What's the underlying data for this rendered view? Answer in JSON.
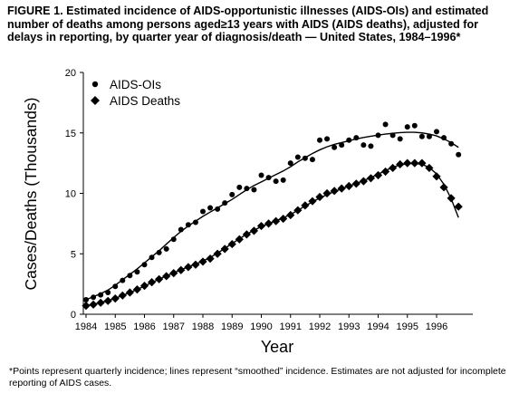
{
  "figure": {
    "caption": "FIGURE 1. Estimated incidence of AIDS-opportunistic illnesses (AIDS-OIs) and estimated number of deaths among persons aged≥13 years with AIDS (AIDS deaths), adjusted for delays in reporting, by quarter year of diagnosis/death — United States, 1984–1996*",
    "footnote": "*Points represent quarterly incidence; lines represent “smoothed” incidence. Estimates are not adjusted for incomplete reporting of AIDS cases."
  },
  "chart_data": {
    "type": "scatter",
    "xlabel": "Year",
    "ylabel": "Cases/Deaths (Thousands)",
    "xlim": [
      1984,
      1997
    ],
    "ylim": [
      0,
      20
    ],
    "x_ticks": [
      "1984",
      "1985",
      "1986",
      "1987",
      "1988",
      "1989",
      "1990",
      "1991",
      "1992",
      "1993",
      "1994",
      "1995",
      "1996"
    ],
    "y_ticks": [
      "0",
      "5",
      "10",
      "15",
      "20"
    ],
    "grid": false,
    "legend_position": "top-left",
    "x": [
      1984.0,
      1984.25,
      1984.5,
      1984.75,
      1985.0,
      1985.25,
      1985.5,
      1985.75,
      1986.0,
      1986.25,
      1986.5,
      1986.75,
      1987.0,
      1987.25,
      1987.5,
      1987.75,
      1988.0,
      1988.25,
      1988.5,
      1988.75,
      1989.0,
      1989.25,
      1989.5,
      1989.75,
      1990.0,
      1990.25,
      1990.5,
      1990.75,
      1991.0,
      1991.25,
      1991.5,
      1991.75,
      1992.0,
      1992.25,
      1992.5,
      1992.75,
      1993.0,
      1993.25,
      1993.5,
      1993.75,
      1994.0,
      1994.25,
      1994.5,
      1994.75,
      1995.0,
      1995.25,
      1995.5,
      1995.75,
      1996.0,
      1996.25,
      1996.5,
      1996.75
    ],
    "series": [
      {
        "name": "AIDS-OIs",
        "marker": "circle",
        "values": [
          1.2,
          1.4,
          1.6,
          1.8,
          2.3,
          2.8,
          3.2,
          3.5,
          4.1,
          4.7,
          5.1,
          5.4,
          6.2,
          7.0,
          7.4,
          7.6,
          8.5,
          8.8,
          8.7,
          9.2,
          9.9,
          10.5,
          10.4,
          10.3,
          11.5,
          11.3,
          11.0,
          11.1,
          12.5,
          13.0,
          12.9,
          12.8,
          14.4,
          14.5,
          13.8,
          14.0,
          14.4,
          14.6,
          14.0,
          13.9,
          14.8,
          15.7,
          14.8,
          14.5,
          15.5,
          15.6,
          14.7,
          14.7,
          15.1,
          14.6,
          14.1,
          13.2
        ],
        "smoothed": [
          1.2,
          1.45,
          1.7,
          2.0,
          2.4,
          2.85,
          3.3,
          3.75,
          4.25,
          4.75,
          5.25,
          5.8,
          6.35,
          6.85,
          7.3,
          7.7,
          8.1,
          8.45,
          8.8,
          9.15,
          9.5,
          9.9,
          10.3,
          10.65,
          10.95,
          11.25,
          11.55,
          11.85,
          12.2,
          12.6,
          12.95,
          13.3,
          13.6,
          13.85,
          14.05,
          14.2,
          14.35,
          14.5,
          14.62,
          14.72,
          14.82,
          14.9,
          14.97,
          15.02,
          15.05,
          15.05,
          15.0,
          14.9,
          14.75,
          14.5,
          14.2,
          13.8
        ]
      },
      {
        "name": "AIDS Deaths",
        "marker": "diamond",
        "values": [
          0.7,
          0.8,
          0.95,
          1.1,
          1.3,
          1.55,
          1.8,
          2.05,
          2.35,
          2.65,
          2.9,
          3.15,
          3.4,
          3.65,
          3.9,
          4.1,
          4.35,
          4.6,
          5.0,
          5.4,
          5.8,
          6.2,
          6.6,
          6.9,
          7.3,
          7.5,
          7.7,
          7.9,
          8.2,
          8.6,
          9.0,
          9.35,
          9.7,
          10.0,
          10.2,
          10.4,
          10.6,
          10.8,
          11.0,
          11.25,
          11.5,
          11.8,
          12.1,
          12.4,
          12.5,
          12.5,
          12.5,
          12.1,
          11.4,
          10.5,
          9.6,
          8.9
        ],
        "smoothed": [
          0.7,
          0.82,
          0.97,
          1.13,
          1.32,
          1.55,
          1.8,
          2.05,
          2.33,
          2.62,
          2.9,
          3.17,
          3.43,
          3.68,
          3.92,
          4.15,
          4.4,
          4.7,
          5.05,
          5.45,
          5.85,
          6.25,
          6.62,
          6.95,
          7.25,
          7.5,
          7.73,
          7.97,
          8.25,
          8.6,
          8.95,
          9.3,
          9.62,
          9.9,
          10.15,
          10.38,
          10.6,
          10.82,
          11.05,
          11.3,
          11.58,
          11.88,
          12.15,
          12.35,
          12.45,
          12.48,
          12.4,
          12.15,
          11.6,
          10.75,
          9.55,
          8.0
        ]
      }
    ]
  }
}
